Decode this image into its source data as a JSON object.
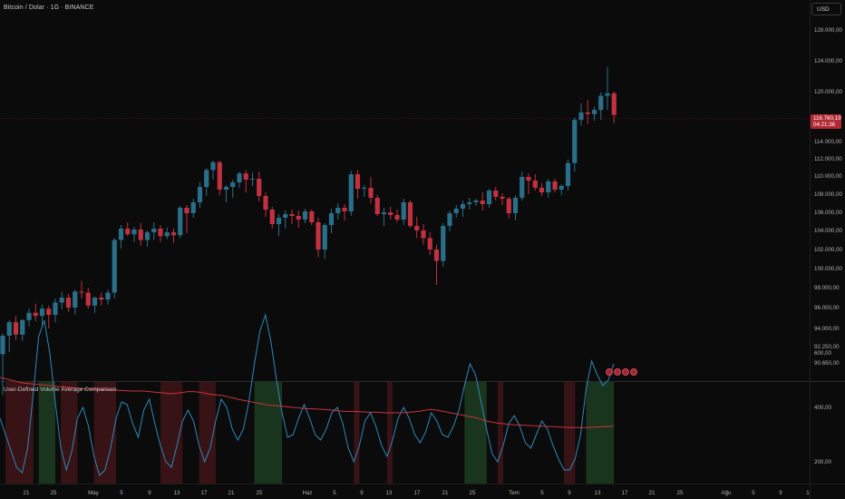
{
  "header": {
    "symbol_title": "Bitcoin / Dolar · 1G · BINANCE",
    "currency_button": "USD"
  },
  "indicator": {
    "title": "User-Defined Volume Average Comparison"
  },
  "price_label": {
    "price": "116.760,19",
    "countdown": "04:21:36"
  },
  "events": {
    "count": 4
  },
  "colors": {
    "background": "#0b0b0b",
    "up_candle": "#2a6f8a",
    "down_candle": "#c2313f",
    "volume_line": "#2f87b8",
    "average_line": "#c7343b",
    "above_average_zone": "#1c3a1f",
    "below_average_zone": "#3d1417",
    "axis_text": "#b0b0b0"
  },
  "chart_data": [
    {
      "type": "candlestick",
      "title": "Bitcoin / Dolar · 1G · BINANCE",
      "y_axis_ticks": [
        "128.000,00",
        "124.000,00",
        "120.000,00",
        "114.000,00",
        "112.000,00",
        "110.000,00",
        "108.000,00",
        "106.000,00",
        "104.000,00",
        "102.000,00",
        "100.000,00",
        "98.000,00",
        "96.000,00",
        "94.000,00",
        "92.250,00",
        "90.650,00"
      ],
      "x_axis_ticks": [
        "21",
        "25",
        "May",
        "5",
        "9",
        "13",
        "17",
        "21",
        "25",
        "Haz",
        "5",
        "9",
        "13",
        "17",
        "21",
        "25",
        "Tem",
        "5",
        "9",
        "13",
        "17",
        "21",
        "25",
        "Ağu",
        "5",
        "9",
        "1"
      ],
      "last_price": 116760.19,
      "candles": [
        [
          91500,
          93500,
          87500,
          93300
        ],
        [
          93300,
          94800,
          91700,
          94600
        ],
        [
          94600,
          95200,
          92900,
          93400
        ],
        [
          93400,
          94900,
          92800,
          94800
        ],
        [
          94800,
          95900,
          94200,
          95500
        ],
        [
          95500,
          96400,
          94700,
          95200
        ],
        [
          95200,
          96300,
          94200,
          95900
        ],
        [
          95900,
          96200,
          94000,
          95300
        ],
        [
          95300,
          96900,
          94600,
          96500
        ],
        [
          96500,
          97600,
          95800,
          97000
        ],
        [
          97000,
          97400,
          95600,
          96000
        ],
        [
          96000,
          97800,
          95300,
          97600
        ],
        [
          97600,
          98700,
          96900,
          97500
        ],
        [
          97500,
          98000,
          95900,
          96200
        ],
        [
          96200,
          97100,
          95500,
          97000
        ],
        [
          97000,
          97500,
          96200,
          96800
        ],
        [
          96800,
          97800,
          96300,
          97500
        ],
        [
          97500,
          103200,
          96900,
          103000
        ],
        [
          103000,
          104600,
          102100,
          104200
        ],
        [
          104200,
          104900,
          103400,
          103600
        ],
        [
          103600,
          104400,
          102800,
          104100
        ],
        [
          104100,
          104800,
          102400,
          103000
        ],
        [
          103000,
          104000,
          102300,
          103800
        ],
        [
          103800,
          104900,
          103000,
          104200
        ],
        [
          104200,
          104600,
          102800,
          103400
        ],
        [
          103400,
          104300,
          103100,
          103800
        ],
        [
          103800,
          104200,
          102700,
          103500
        ],
        [
          103500,
          106700,
          103200,
          106500
        ],
        [
          106500,
          106800,
          103700,
          105900
        ],
        [
          105900,
          107500,
          105400,
          107100
        ],
        [
          107100,
          109300,
          106500,
          108800
        ],
        [
          108800,
          110900,
          107800,
          110700
        ],
        [
          110700,
          111800,
          109600,
          111600
        ],
        [
          111600,
          111800,
          107900,
          108500
        ],
        [
          108500,
          109000,
          107100,
          108800
        ],
        [
          108800,
          109600,
          107600,
          109300
        ],
        [
          109300,
          110500,
          108700,
          110300
        ],
        [
          110300,
          110700,
          108200,
          109600
        ],
        [
          109600,
          110400,
          108900,
          109700
        ],
        [
          109700,
          110500,
          107200,
          107800
        ],
        [
          107800,
          108200,
          105500,
          106300
        ],
        [
          106300,
          106600,
          104200,
          104700
        ],
        [
          104700,
          105800,
          103400,
          105400
        ],
        [
          105400,
          106200,
          104200,
          105800
        ],
        [
          105800,
          106300,
          104700,
          105600
        ],
        [
          105600,
          106200,
          104300,
          105200
        ],
        [
          105200,
          106400,
          104800,
          106100
        ],
        [
          106100,
          106300,
          104600,
          104900
        ],
        [
          104900,
          105400,
          101200,
          102000
        ],
        [
          102000,
          104800,
          101000,
          104600
        ],
        [
          104600,
          106400,
          103700,
          105900
        ],
        [
          105900,
          107000,
          105200,
          106500
        ],
        [
          106500,
          106900,
          105100,
          106100
        ],
        [
          106100,
          110600,
          105600,
          110200
        ],
        [
          110200,
          110700,
          107500,
          108600
        ],
        [
          108600,
          109000,
          107700,
          108700
        ],
        [
          108700,
          109900,
          107000,
          107600
        ],
        [
          107600,
          107900,
          105600,
          105800
        ],
        [
          105800,
          106500,
          104500,
          106000
        ],
        [
          106000,
          106600,
          105200,
          105700
        ],
        [
          105700,
          106300,
          104900,
          105200
        ],
        [
          105200,
          107500,
          104600,
          107100
        ],
        [
          107100,
          107300,
          104300,
          104500
        ],
        [
          104500,
          105500,
          103200,
          104000
        ],
        [
          104000,
          104700,
          102500,
          103200
        ],
        [
          103200,
          103800,
          101400,
          102000
        ],
        [
          102000,
          102500,
          98300,
          100800
        ],
        [
          100800,
          104800,
          100200,
          104500
        ],
        [
          104500,
          106200,
          103900,
          105900
        ],
        [
          105900,
          106800,
          105400,
          106400
        ],
        [
          106400,
          107300,
          105500,
          106900
        ],
        [
          106900,
          107600,
          106300,
          107100
        ],
        [
          107100,
          107500,
          106700,
          107300
        ],
        [
          107300,
          108200,
          106200,
          106900
        ],
        [
          106900,
          108600,
          106500,
          108400
        ],
        [
          108400,
          108800,
          107300,
          107700
        ],
        [
          107700,
          108100,
          106800,
          107500
        ],
        [
          107500,
          107700,
          105300,
          105900
        ],
        [
          105900,
          107900,
          105100,
          107600
        ],
        [
          107600,
          110500,
          107300,
          109900
        ],
        [
          109900,
          110300,
          108000,
          109500
        ],
        [
          109500,
          110200,
          108400,
          108700
        ],
        [
          108700,
          109200,
          107800,
          108200
        ],
        [
          108200,
          109700,
          107600,
          109400
        ],
        [
          109400,
          109700,
          108200,
          108500
        ],
        [
          108500,
          109100,
          107900,
          108900
        ],
        [
          108900,
          111900,
          108400,
          111500
        ],
        [
          111500,
          116900,
          110500,
          116600
        ],
        [
          116600,
          118600,
          115900,
          117500
        ],
        [
          117500,
          119000,
          116100,
          117300
        ],
        [
          117300,
          118200,
          116500,
          117800
        ],
        [
          117800,
          119900,
          116600,
          119500
        ],
        [
          119500,
          123200,
          117800,
          119800
        ],
        [
          119800,
          120000,
          116200,
          117200
        ]
      ]
    },
    {
      "type": "line",
      "title": "User-Defined Volume Average Comparison",
      "y_axis_ticks": [
        "600,00",
        "400,00",
        "200,00"
      ],
      "series": [
        {
          "values": [
            360,
            300,
            240,
            180,
            160,
            250,
            450,
            660,
            720,
            600,
            420,
            250,
            170,
            240,
            360,
            400,
            330,
            220,
            150,
            170,
            250,
            360,
            420,
            410,
            340,
            290,
            390,
            430,
            340,
            260,
            200,
            180,
            260,
            350,
            390,
            350,
            260,
            200,
            250,
            350,
            430,
            400,
            320,
            280,
            320,
            420,
            560,
            680,
            740,
            640,
            500,
            380,
            290,
            300,
            360,
            410,
            360,
            300,
            280,
            320,
            380,
            400,
            340,
            250,
            200,
            260,
            350,
            380,
            330,
            260,
            220,
            280,
            360,
            400,
            360,
            300,
            270,
            310,
            380,
            350,
            300,
            290,
            330,
            390,
            480,
            560,
            520,
            420,
            320,
            230,
            200,
            260,
            340,
            370,
            330,
            270,
            250,
            300,
            350,
            320,
            260,
            210,
            170,
            170,
            210,
            300,
            470,
            570,
            520,
            480,
            500,
            560
          ]
        },
        {
          "values": [
            510,
            505,
            500,
            495,
            490,
            488,
            486,
            484,
            482,
            480,
            478,
            476,
            474,
            472,
            470,
            468,
            468,
            467,
            466,
            465,
            464,
            463,
            462,
            461,
            460,
            460,
            460,
            458,
            456,
            454,
            452,
            450,
            452,
            455,
            458,
            458,
            456,
            452,
            448,
            446,
            444,
            440,
            435,
            430,
            426,
            422,
            418,
            414,
            410,
            408,
            406,
            404,
            402,
            400,
            398,
            396,
            395,
            394,
            393,
            392,
            390,
            388,
            386,
            385,
            385,
            384,
            383,
            382,
            382,
            381,
            380,
            380,
            380,
            381,
            382,
            384,
            386,
            390,
            392,
            390,
            386,
            382,
            378,
            374,
            370,
            366,
            362,
            356,
            350,
            346,
            342,
            340,
            338,
            336,
            335,
            334,
            333,
            332,
            331,
            330,
            329,
            328,
            327,
            326,
            326,
            326,
            326,
            327,
            328,
            329,
            330,
            331
          ]
        }
      ]
    }
  ]
}
